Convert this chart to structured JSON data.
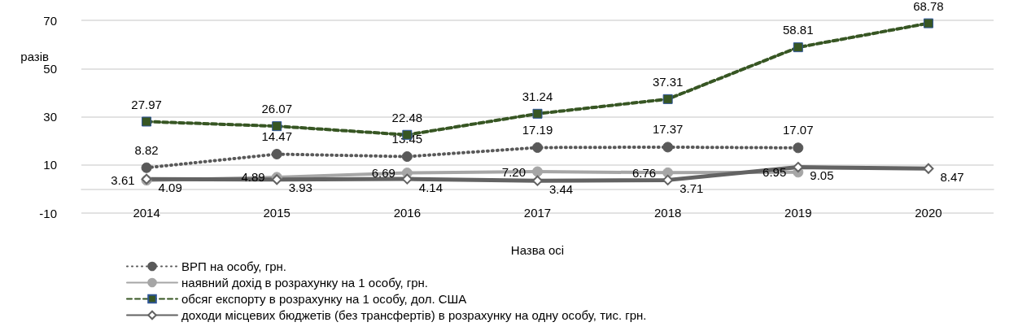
{
  "chart_data": {
    "type": "line",
    "ylabel": "разів",
    "xlabel": "Назва осі",
    "categories": [
      "2014",
      "2015",
      "2016",
      "2017",
      "2018",
      "2019",
      "2020"
    ],
    "series": [
      {
        "name": "ВРП на особу, грн.",
        "color": "#595959",
        "marker": "circle",
        "line_style": "dotted",
        "values": [
          8.82,
          14.47,
          13.45,
          17.19,
          17.37,
          17.07,
          null
        ]
      },
      {
        "name": "наявний дохід в розрахунку на 1 особу, грн.",
        "color": "#a6a6a6",
        "marker": "circle",
        "line_style": "solid",
        "values": [
          3.61,
          4.89,
          6.69,
          7.2,
          6.76,
          6.95,
          null
        ],
        "value_labels": [
          "3.61",
          "4.89",
          "6.69",
          "7.20",
          "6.76",
          "6.95",
          null
        ]
      },
      {
        "name": "обсяг експорту в розрахунку на 1 особу, дол. США",
        "color": "#375623",
        "marker": "square",
        "line_style": "dashed",
        "values": [
          27.97,
          26.07,
          22.48,
          31.24,
          37.31,
          58.81,
          68.78
        ]
      },
      {
        "name": "доходи місцевих бюджетів (без трансфертів) в розрахунку на одну особу, тис. грн.",
        "color": "#636363",
        "marker": "diamond",
        "line_style": "solid",
        "values": [
          4.09,
          3.93,
          4.14,
          3.44,
          3.71,
          9.05,
          8.47
        ]
      }
    ],
    "ylim": [
      -10,
      70
    ],
    "yticks": [
      -10,
      10,
      30,
      50,
      70
    ],
    "grid": "y",
    "legend": "bottom",
    "data_labels": true
  }
}
